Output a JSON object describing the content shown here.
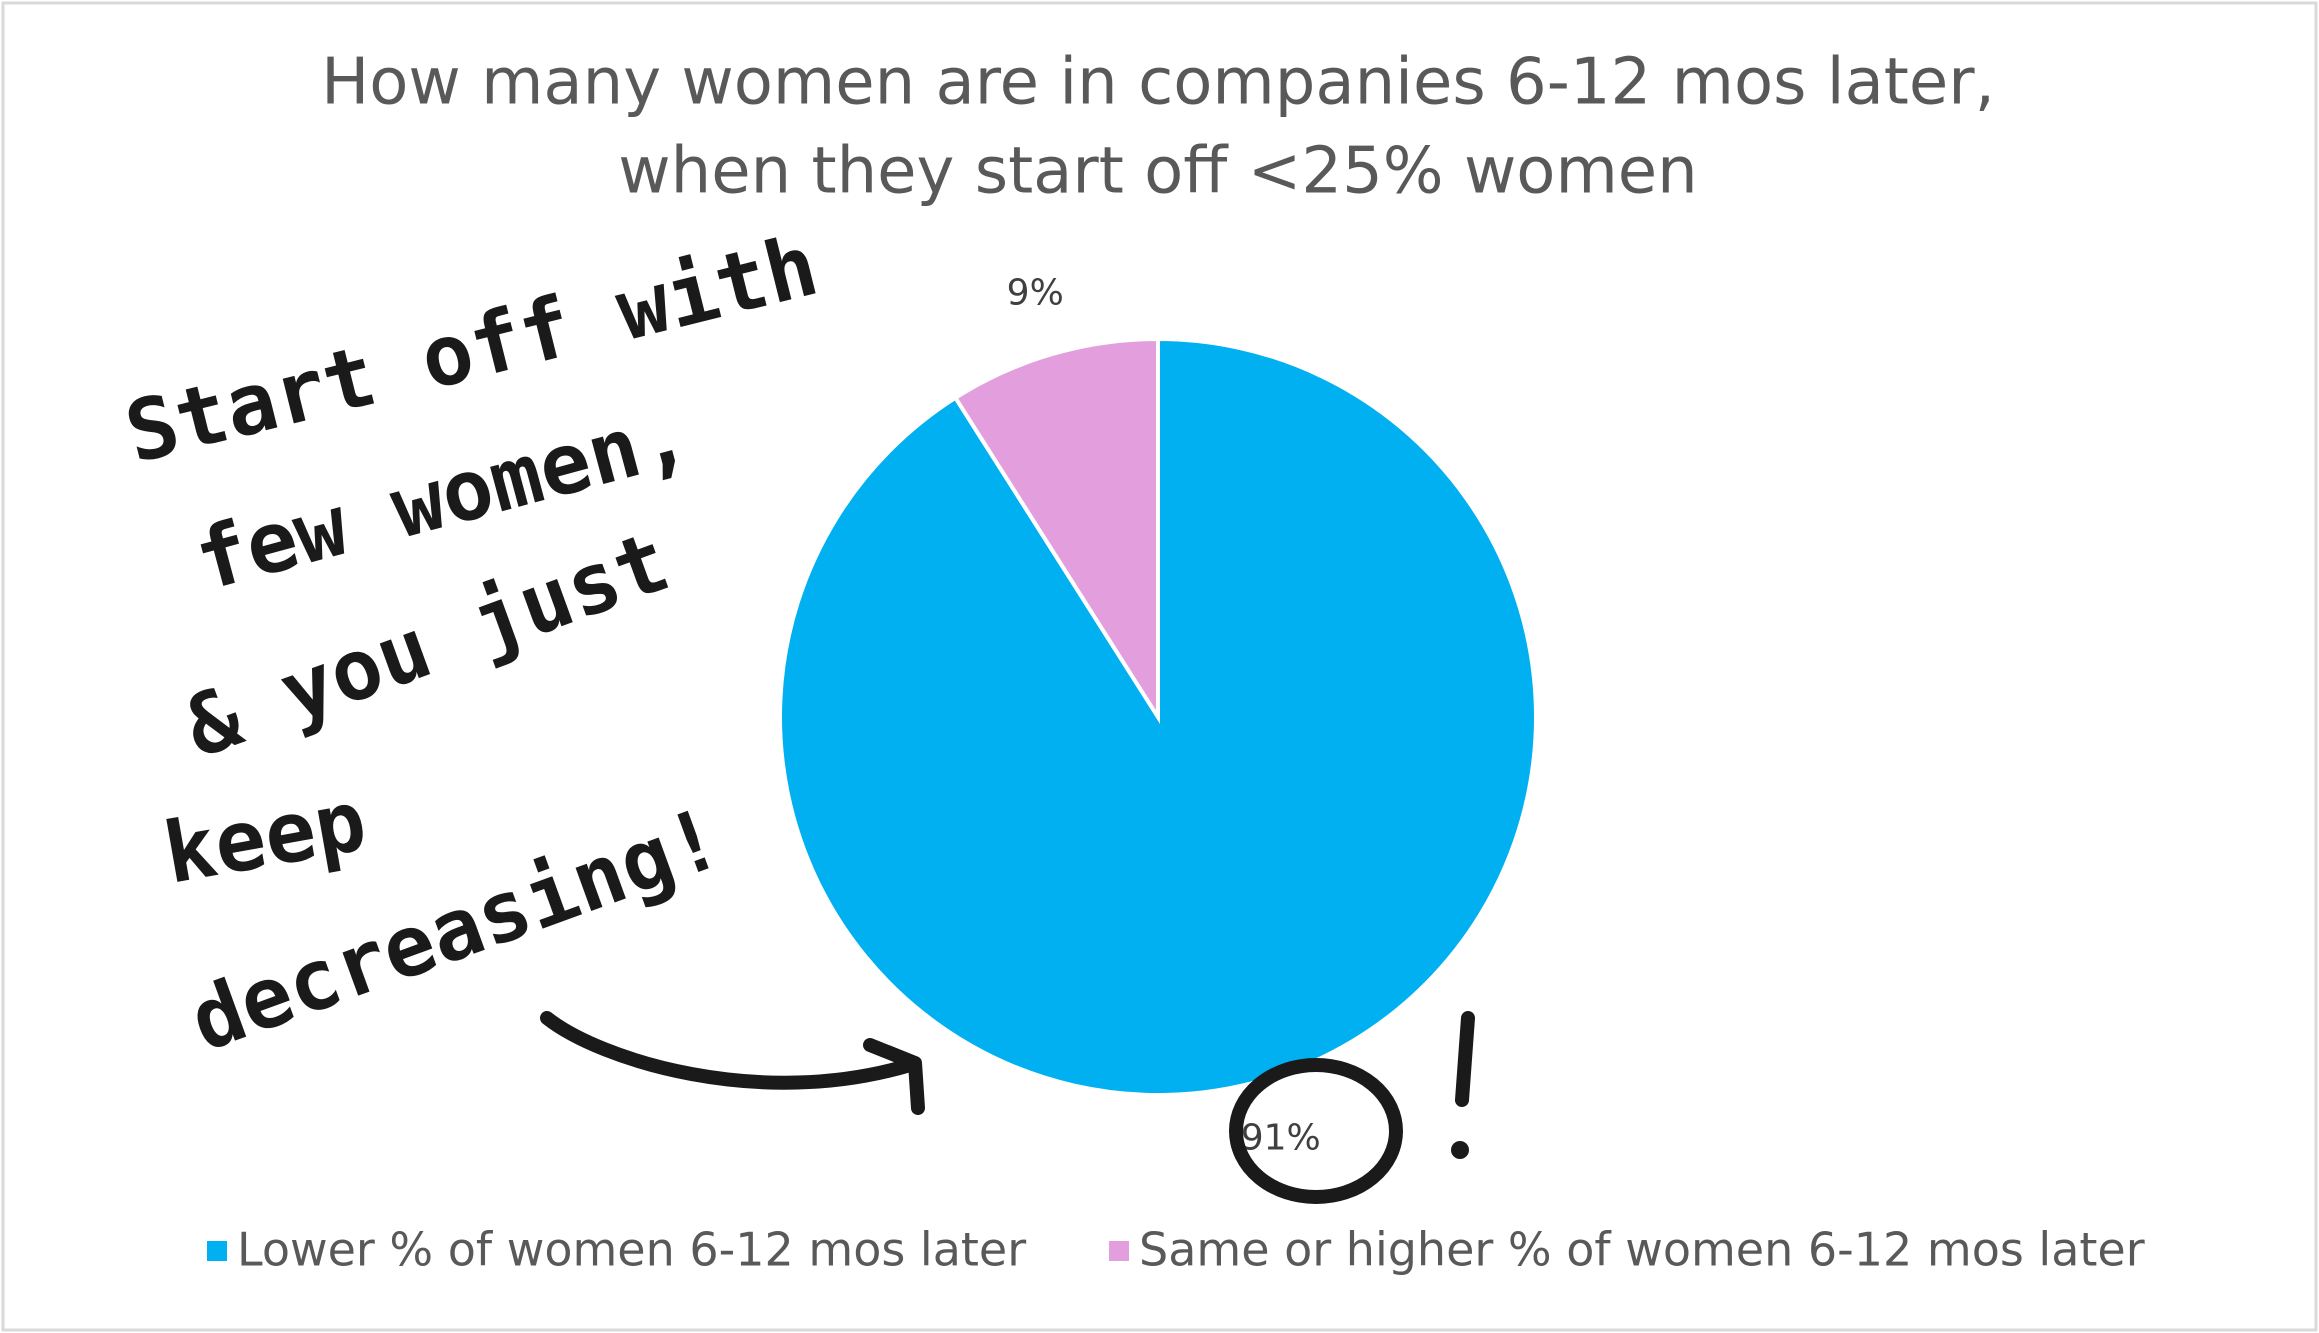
{
  "chart_data": {
    "type": "pie",
    "title": [
      "How many women are in companies 6-12 mos later,",
      "when they start off <25% women"
    ],
    "categories": [
      "Lower % of women 6-12 mos later",
      "Same or higher % of women 6-12 mos later"
    ],
    "values": [
      91,
      9
    ],
    "value_labels": [
      "91%",
      "9%"
    ],
    "colors": [
      "#00b0f0",
      "#e39fdd"
    ],
    "legend": "bottom",
    "annotation": [
      "Start off with",
      "few women,",
      "& you just",
      "keep",
      "decreasing!"
    ]
  }
}
